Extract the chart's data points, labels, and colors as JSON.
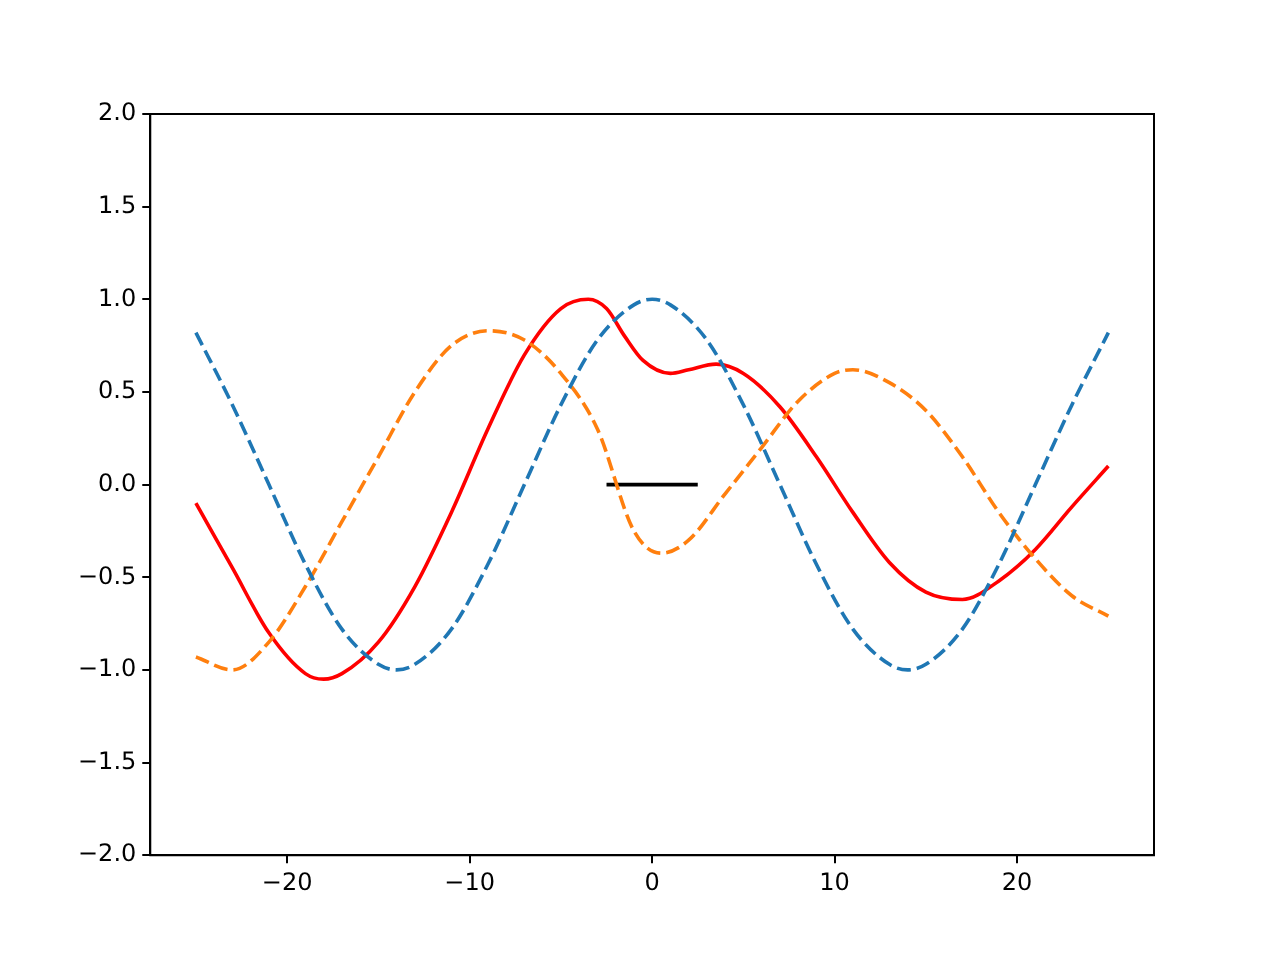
{
  "chart_data": {
    "type": "line",
    "xlim": [
      -27.5,
      27.5
    ],
    "xticks": [
      {
        "value": -20,
        "label": "−20"
      },
      {
        "value": -10,
        "label": "−10"
      },
      0,
      10,
      20
    ],
    "ylim": [
      -2.0,
      2.0
    ],
    "yticks": [
      {
        "value": -2,
        "label": "−2.0"
      },
      {
        "value": -1.5,
        "label": "−1.5"
      },
      {
        "value": -1,
        "label": "−1.0"
      },
      {
        "value": -0.5,
        "label": "−0.5"
      },
      {
        "value": 0,
        "label": "0.0"
      },
      {
        "value": 0.5,
        "label": "0.5"
      },
      {
        "value": 1,
        "label": "1.0"
      },
      {
        "value": 1.5,
        "label": "1.5"
      },
      {
        "value": 2,
        "label": "2.0"
      }
    ],
    "grid": false,
    "legend": false,
    "marker": "none",
    "series": [
      {
        "color": "#1f77b4",
        "line_style": "dashed",
        "x": [
          -25,
          -23,
          -21,
          -19,
          -17,
          -15,
          -14,
          -13,
          -11,
          -9,
          -7,
          -5,
          -3,
          -1,
          0,
          1,
          3,
          5,
          7,
          9,
          11,
          13,
          14,
          15,
          17,
          19,
          21,
          23,
          25
        ],
        "values": [
          0.82,
          0.43,
          0.0,
          -0.43,
          -0.78,
          -0.97,
          -1.0,
          -0.97,
          -0.78,
          -0.43,
          0.0,
          0.43,
          0.78,
          0.97,
          1.0,
          0.97,
          0.78,
          0.43,
          0.0,
          -0.43,
          -0.78,
          -0.97,
          -1.0,
          -0.97,
          -0.78,
          -0.43,
          0.0,
          0.43,
          0.82
        ]
      },
      {
        "color": "#ff7f0e",
        "line_style": "dashed",
        "x": [
          -25,
          -23,
          -21,
          -19,
          -17,
          -15,
          -13,
          -11,
          -9,
          -7,
          -5,
          -3,
          -1,
          0.5,
          2,
          4,
          6,
          8,
          10,
          11,
          13,
          15,
          17,
          19,
          21,
          23,
          25
        ],
        "values": [
          -0.93,
          -1.0,
          -0.85,
          -0.55,
          -0.2,
          0.15,
          0.5,
          0.75,
          0.83,
          0.78,
          0.6,
          0.3,
          -0.25,
          -0.37,
          -0.3,
          -0.05,
          0.2,
          0.45,
          0.6,
          0.62,
          0.55,
          0.4,
          0.15,
          -0.15,
          -0.4,
          -0.6,
          -0.71
        ]
      },
      {
        "color": "#ff0000",
        "line_style": "solid",
        "x": [
          -25,
          -23,
          -21,
          -19,
          -18,
          -17,
          -15,
          -13,
          -11,
          -9,
          -7,
          -5,
          -3.5,
          -2.5,
          -1.5,
          -0.5,
          1,
          2,
          3.5,
          5,
          7,
          9,
          11,
          13,
          15,
          17,
          19,
          21,
          23,
          25
        ],
        "values": [
          -0.1,
          -0.45,
          -0.8,
          -1.02,
          -1.05,
          -1.02,
          -0.85,
          -0.55,
          -0.15,
          0.3,
          0.7,
          0.95,
          1.0,
          0.95,
          0.8,
          0.67,
          0.6,
          0.62,
          0.65,
          0.6,
          0.42,
          0.15,
          -0.15,
          -0.42,
          -0.58,
          -0.62,
          -0.52,
          -0.35,
          -0.12,
          0.1
        ]
      },
      {
        "color": "#000000",
        "line_style": "solid",
        "x": [
          -2.5,
          2.5
        ],
        "values": [
          0,
          0
        ]
      }
    ]
  }
}
